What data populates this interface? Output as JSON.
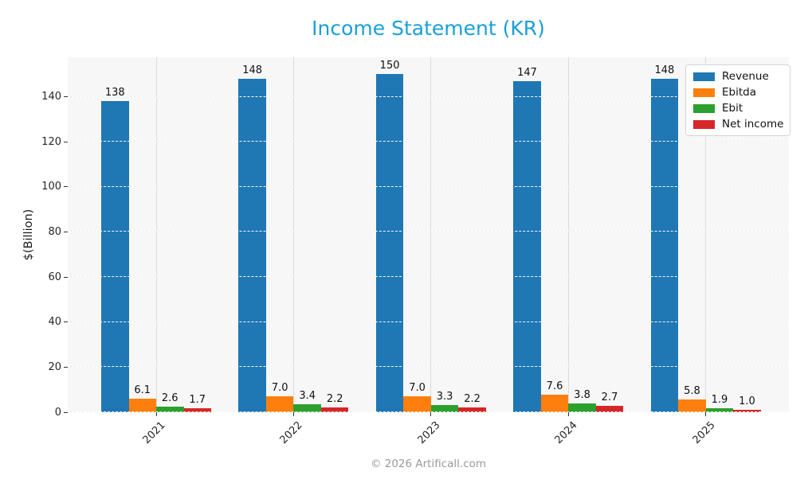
{
  "accent_color": "#1aa0d8",
  "footer": {
    "credit": "© 2026 Artificall.com"
  },
  "chart_data": {
    "type": "bar",
    "title": "Income Statement (KR)",
    "xlabel": "",
    "ylabel": "$(Billion)",
    "categories": [
      "2021",
      "2022",
      "2023",
      "2024",
      "2025"
    ],
    "series": [
      {
        "name": "Revenue",
        "color": "#1f77b4",
        "values": [
          138,
          148,
          150,
          147,
          148
        ],
        "labels": [
          "138",
          "148",
          "150",
          "147",
          "148"
        ]
      },
      {
        "name": "Ebitda",
        "color": "#ff7f0e",
        "values": [
          6.1,
          7.0,
          7.0,
          7.6,
          5.8
        ],
        "labels": [
          "6.1",
          "7.0",
          "7.0",
          "7.6",
          "5.8"
        ]
      },
      {
        "name": "Ebit",
        "color": "#2ca02c",
        "values": [
          2.6,
          3.4,
          3.3,
          3.8,
          1.9
        ],
        "labels": [
          "2.6",
          "3.4",
          "3.3",
          "3.8",
          "1.9"
        ]
      },
      {
        "name": "Net income",
        "color": "#d62728",
        "values": [
          1.7,
          2.2,
          2.2,
          2.7,
          1.0
        ],
        "labels": [
          "1.7",
          "2.2",
          "2.2",
          "2.7",
          "1.0"
        ]
      }
    ],
    "yticks": [
      0,
      20,
      40,
      60,
      80,
      100,
      120,
      140
    ],
    "ylim": [
      0,
      157.5
    ],
    "grid": true,
    "grid_style": "horizontal dashed white over bars, vertical light gray at group centers",
    "plot_background": "#f7f7f7",
    "legend_position": "upper right",
    "bar_value_labels": true,
    "xtick_rotation": 45
  }
}
